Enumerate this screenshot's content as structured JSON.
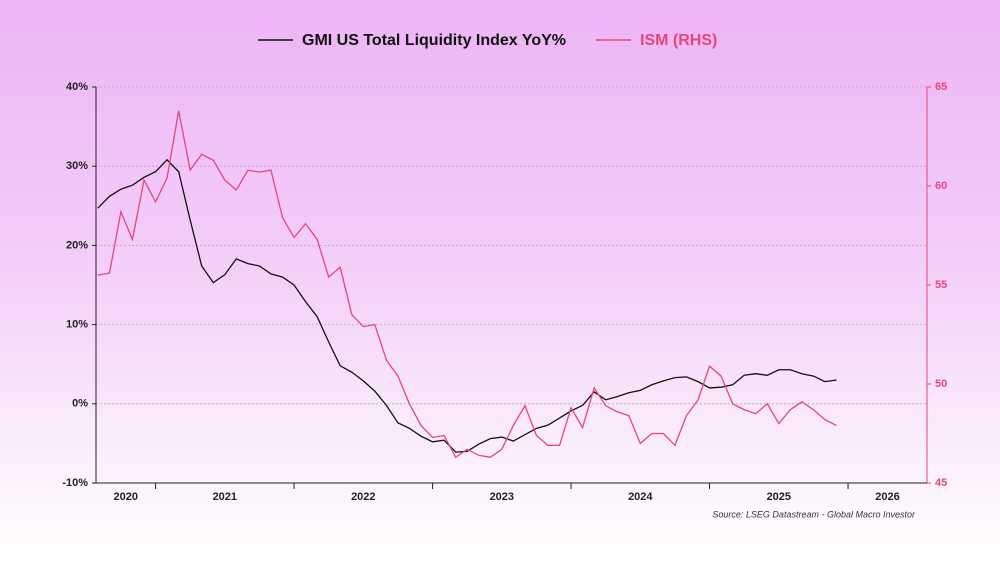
{
  "chart_data": {
    "type": "line",
    "x": [
      2020.583,
      2020.667,
      2020.75,
      2020.833,
      2020.917,
      2021,
      2021.083,
      2021.167,
      2021.25,
      2021.333,
      2021.417,
      2021.5,
      2021.583,
      2021.667,
      2021.75,
      2021.833,
      2021.917,
      2022,
      2022.083,
      2022.167,
      2022.25,
      2022.333,
      2022.417,
      2022.5,
      2022.583,
      2022.667,
      2022.75,
      2022.833,
      2022.917,
      2023,
      2023.083,
      2023.167,
      2023.25,
      2023.333,
      2023.417,
      2023.5,
      2023.583,
      2023.667,
      2023.75,
      2023.833,
      2023.917,
      2024,
      2024.083,
      2024.167,
      2024.25,
      2024.333,
      2024.417,
      2024.5,
      2024.583,
      2024.667,
      2024.75,
      2024.833,
      2024.917,
      2025,
      2025.083,
      2025.167,
      2025.25,
      2025.333,
      2025.417,
      2025.5,
      2025.583,
      2025.667,
      2025.75,
      2025.833,
      2025.917
    ],
    "series": [
      {
        "name": "GMI US Total Liquidity Index YoY%",
        "color": "#111111",
        "values": [
          24.7,
          26.2,
          27.1,
          27.6,
          28.6,
          29.3,
          30.8,
          29.3,
          23.2,
          17.4,
          15.3,
          16.3,
          18.3,
          17.7,
          17.4,
          16.4,
          16.0,
          15.0,
          12.9,
          11.0,
          7.8,
          4.8,
          4.0,
          2.9,
          1.6,
          -0.2,
          -2.4,
          -3.1,
          -4.1,
          -4.8,
          -4.6,
          -6.1,
          -6.0,
          -5.1,
          -4.4,
          -4.2,
          -4.7,
          -3.9,
          -3.1,
          -2.7,
          -1.8,
          -0.9,
          -0.2,
          1.5,
          0.5,
          0.9,
          1.4,
          1.7,
          2.4,
          2.9,
          3.3,
          3.4,
          2.8,
          2.0,
          2.1,
          2.4,
          3.6,
          3.8,
          3.6,
          4.3,
          4.3,
          3.8,
          3.5,
          2.8,
          3.0
        ]
      },
      {
        "name": "ISM (RHS)",
        "color": "#e8457c",
        "axis": "y2",
        "values": [
          55.5,
          55.6,
          58.7,
          57.3,
          60.3,
          59.2,
          60.4,
          63.8,
          60.8,
          61.6,
          61.3,
          60.3,
          59.8,
          60.8,
          60.7,
          60.8,
          58.4,
          57.4,
          58.1,
          57.3,
          55.4,
          55.9,
          53.5,
          52.9,
          53.0,
          51.2,
          50.4,
          49.0,
          47.9,
          47.3,
          47.4,
          46.3,
          46.7,
          46.4,
          46.3,
          46.7,
          47.9,
          48.9,
          47.4,
          46.9,
          46.9,
          48.8,
          47.8,
          49.8,
          48.9,
          48.6,
          48.4,
          47.0,
          47.5,
          47.5,
          46.9,
          48.4,
          49.2,
          50.9,
          50.4,
          49.0,
          48.7,
          48.5,
          49.0,
          48.0,
          48.7,
          49.1,
          48.7,
          48.2,
          47.9
        ]
      }
    ],
    "xlim": [
      2020.57,
      2026.57
    ],
    "xticks": [
      2021,
      2022,
      2023,
      2024,
      2025,
      2026
    ],
    "xtick_labels": [
      "2020",
      "2021",
      "2022",
      "2023",
      "2024",
      "2025",
      "2026"
    ],
    "ylim": [
      -10,
      40
    ],
    "yticks": [
      {
        "value": -10,
        "label": "-10%"
      },
      {
        "value": 0,
        "label": "0%"
      },
      {
        "value": 10,
        "label": "10%"
      },
      {
        "value": 20,
        "label": "20%"
      },
      {
        "value": 30,
        "label": "30%"
      },
      {
        "value": 40,
        "label": "40%"
      }
    ],
    "y2lim": [
      45,
      65
    ],
    "y2ticks": [
      45,
      50,
      55,
      60,
      65
    ],
    "grid": true,
    "source": "Source: LSEG Datastream - Global Macro Investor"
  }
}
